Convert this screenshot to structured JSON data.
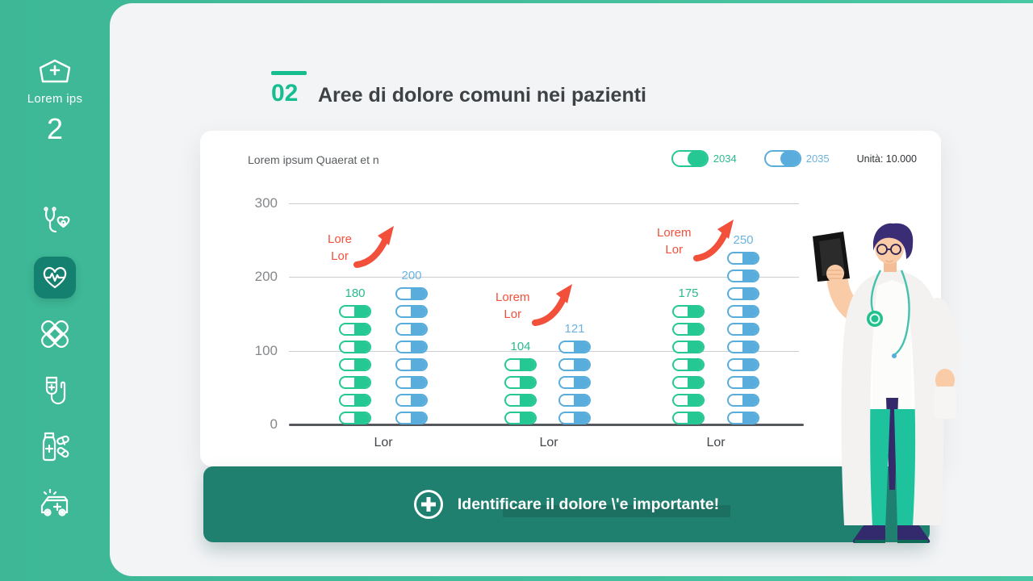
{
  "sidebar": {
    "logo_icon": "nurse-cap-icon",
    "logo_label": "Lorem ips",
    "logo_number": "2",
    "items": [
      {
        "icon": "stethoscope-heart-icon",
        "active": false
      },
      {
        "icon": "heart-pulse-icon",
        "active": true
      },
      {
        "icon": "bandages-icon",
        "active": false
      },
      {
        "icon": "iv-drip-icon",
        "active": false
      },
      {
        "icon": "medicine-bottle-pills-icon",
        "active": false
      },
      {
        "icon": "ambulance-icon",
        "active": false
      }
    ]
  },
  "header": {
    "index": "02",
    "title": "Aree di dolore comuni nei pazienti"
  },
  "card": {
    "subtitle": "Lorem ipsum Quaerat et n",
    "unit_label": "Unità: 10.000",
    "legend": [
      {
        "label": "2034",
        "color": "#25c893"
      },
      {
        "label": "2035",
        "color": "#58addc"
      }
    ]
  },
  "chart_data": {
    "type": "bar",
    "title": "Lorem ipsum Quaerat et n",
    "unit": "Unità: 10.000",
    "categories": [
      "Lor",
      "Lor",
      "Lor"
    ],
    "series": [
      {
        "name": "2034",
        "color": "#25c893",
        "values": [
          180,
          104,
          175
        ]
      },
      {
        "name": "2035",
        "color": "#58addc",
        "values": [
          200,
          121,
          250
        ]
      }
    ],
    "ylim": [
      0,
      300
    ],
    "yticks": [
      0,
      100,
      200,
      300
    ],
    "grid": true,
    "legend_position": "top-right",
    "capsule_value": 25,
    "annotations": [
      {
        "line1": "Lore",
        "line2": "Lor",
        "color": "#f2503b",
        "group": 0
      },
      {
        "line1": "Lorem",
        "line2": "Lor",
        "color": "#f2503b",
        "group": 1
      },
      {
        "line1": "Lorem",
        "line2": "Lor",
        "color": "#f2503b",
        "group": 2
      }
    ]
  },
  "banner": {
    "text": "Identificare il dolore \\'e importante!",
    "icon": "plus-circle-icon"
  },
  "colors": {
    "background_green": "#41bd9b",
    "active_tile": "#148170",
    "panel": "#f3f4f6",
    "card": "#ffffff",
    "banner": "#1f8070",
    "accent_green": "#16be8f",
    "series_green": "#25c893",
    "series_blue": "#58addc",
    "annotation_red": "#f2503b",
    "title_text": "#3e4245"
  }
}
